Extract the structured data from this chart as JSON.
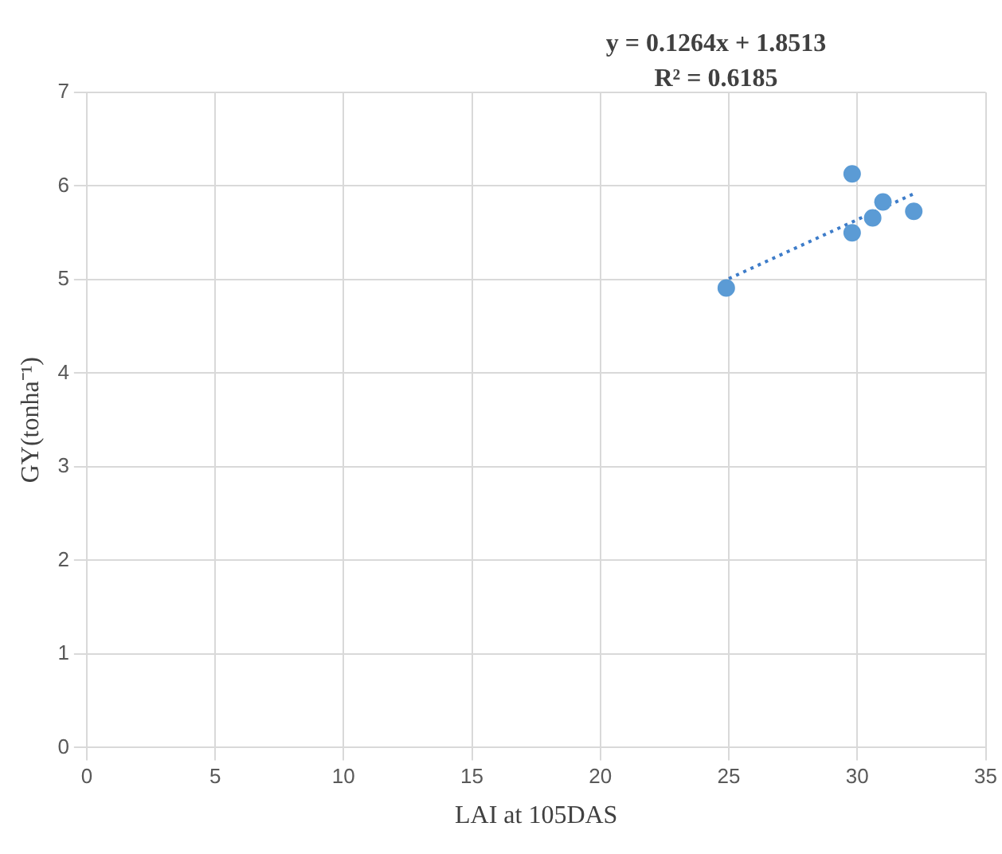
{
  "chart_data": {
    "type": "scatter",
    "xlabel": "LAI at 105DAS",
    "ylabel": "GY(tonha⁻¹)",
    "annotations": [
      "y = 0.1264x + 1.8513",
      "R² = 0.6185"
    ],
    "series": [
      {
        "color": "#5b9bd5",
        "x": [
          24.9,
          29.8,
          29.8,
          30.6,
          31.0,
          32.2
        ],
        "values": [
          4.91,
          6.13,
          5.5,
          5.66,
          5.83,
          5.73
        ],
        "marker": "circle"
      },
      {
        "type": "line",
        "color": "#3d7cc9",
        "x": [
          25,
          32.3
        ],
        "values": [
          5.01,
          5.93
        ],
        "line_style": "dotted",
        "marker": "none"
      }
    ],
    "xlim": [
      0,
      35
    ],
    "xticks": [
      0,
      5,
      10,
      15,
      20,
      25,
      30,
      35
    ],
    "ylim": [
      0,
      7
    ],
    "yticks": [
      0,
      1,
      2,
      3,
      4,
      5,
      6,
      7
    ],
    "grid": true,
    "legend": false
  }
}
